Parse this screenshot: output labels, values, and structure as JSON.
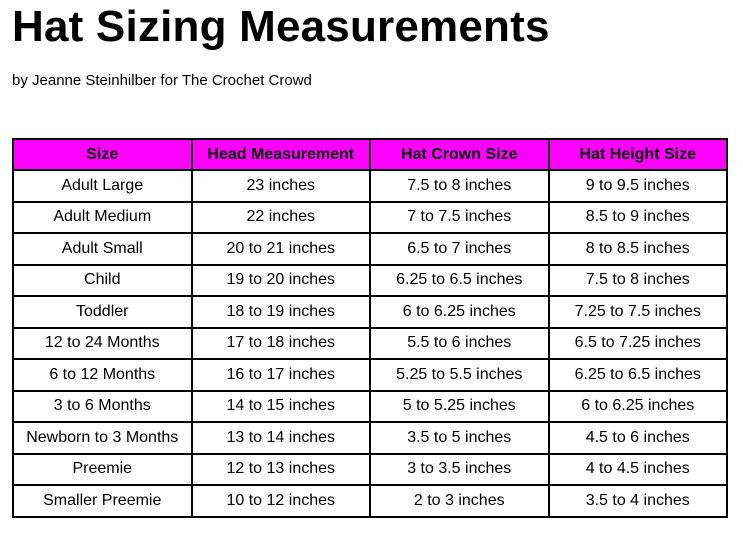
{
  "header": {
    "title": "Hat Sizing Measurements",
    "byline": "by Jeanne Steinhilber for The Crochet Crowd"
  },
  "table": {
    "columns": [
      "Size",
      "Head Measurement",
      "Hat Crown Size",
      "Hat Height Size"
    ],
    "rows": [
      [
        "Adult Large",
        "23 inches",
        "7.5 to 8 inches",
        "9 to 9.5 inches"
      ],
      [
        "Adult Medium",
        "22 inches",
        "7 to 7.5 inches",
        "8.5 to 9 inches"
      ],
      [
        "Adult Small",
        "20 to 21 inches",
        "6.5 to 7 inches",
        "8 to 8.5 inches"
      ],
      [
        "Child",
        "19 to 20 inches",
        "6.25 to 6.5 inches",
        "7.5 to 8 inches"
      ],
      [
        "Toddler",
        "18 to 19 inches",
        "6 to 6.25 inches",
        "7.25 to 7.5 inches"
      ],
      [
        "12 to 24 Months",
        "17 to 18 inches",
        "5.5 to 6 inches",
        "6.5 to 7.25 inches"
      ],
      [
        "6 to 12 Months",
        "16 to 17 inches",
        "5.25 to 5.5 inches",
        "6.25 to 6.5 inches"
      ],
      [
        "3 to 6 Months",
        "14 to 15 inches",
        "5 to 5.25 inches",
        "6 to 6.25 inches"
      ],
      [
        "Newborn to 3 Months",
        "13 to 14 inches",
        "3.5 to 5 inches",
        "4.5 to 6 inches"
      ],
      [
        "Preemie",
        "12 to 13 inches",
        "3 to 3.5 inches",
        "4 to 4.5 inches"
      ],
      [
        "Smaller Preemie",
        "10 to 12 inches",
        "2 to 3 inches",
        "3.5 to 4 inches"
      ]
    ]
  }
}
